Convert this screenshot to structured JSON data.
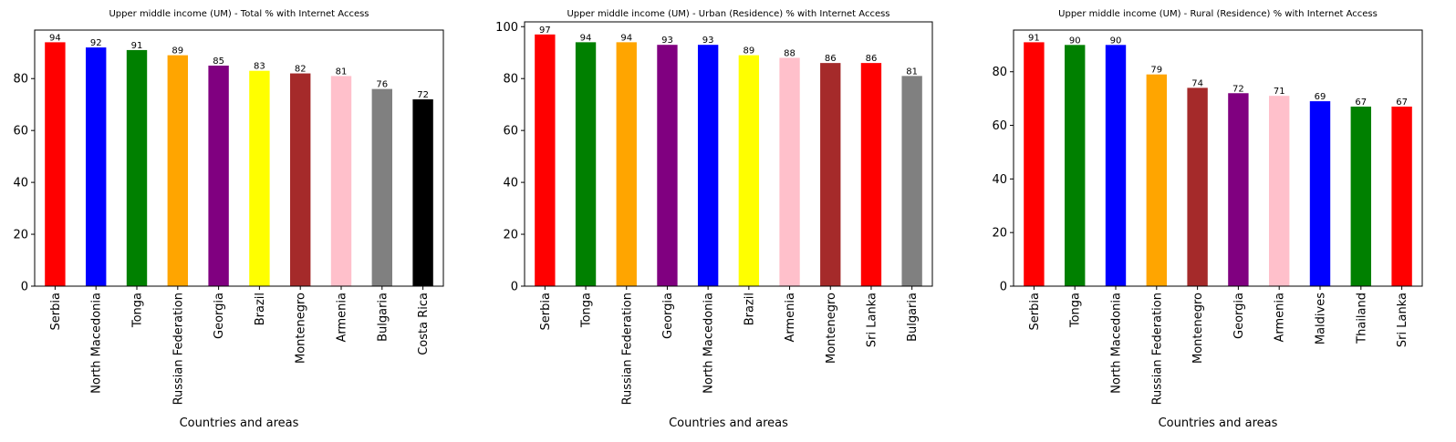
{
  "chart_data": [
    {
      "type": "bar",
      "title": "Upper middle income (UM) - Total % with Internet Access",
      "xlabel": "Countries and areas",
      "ylabel": "",
      "ylim": [
        0,
        98.7
      ],
      "yticks": [
        0,
        20,
        40,
        60,
        80
      ],
      "grid": false,
      "categories": [
        "Serbia",
        "North Macedonia",
        "Tonga",
        "Russian Federation",
        "Georgia",
        "Brazil",
        "Montenegro",
        "Armenia",
        "Bulgaria",
        "Costa Rica"
      ],
      "values": [
        94,
        92,
        91,
        89,
        85,
        83,
        82,
        81,
        76,
        72
      ],
      "colors": [
        "#ff0000",
        "#0000ff",
        "#008000",
        "#ffa500",
        "#800080",
        "#ffff00",
        "#a52a2a",
        "#ffc0cb",
        "#808080",
        "#000000"
      ]
    },
    {
      "type": "bar",
      "title": "Upper middle income (UM) - Urban (Residence) % with Internet Access",
      "xlabel": "Countries and areas",
      "ylabel": "",
      "ylim": [
        0,
        101.85
      ],
      "yticks": [
        0,
        20,
        40,
        60,
        80,
        100
      ],
      "grid": false,
      "categories": [
        "Serbia",
        "Tonga",
        "Russian Federation",
        "Georgia",
        "North Macedonia",
        "Brazil",
        "Armenia",
        "Montenegro",
        "Sri Lanka",
        "Bulgaria"
      ],
      "values": [
        97,
        94,
        94,
        93,
        93,
        89,
        88,
        86,
        86,
        81
      ],
      "colors": [
        "#ff0000",
        "#008000",
        "#ffa500",
        "#800080",
        "#0000ff",
        "#ffff00",
        "#ffc0cb",
        "#a52a2a",
        "#ff0000",
        "#808080"
      ]
    },
    {
      "type": "bar",
      "title": "Upper middle income (UM) - Rural (Residence) % with Internet Access",
      "xlabel": "Countries and areas",
      "ylabel": "",
      "ylim": [
        0,
        95.55
      ],
      "yticks": [
        0,
        20,
        40,
        60,
        80
      ],
      "grid": false,
      "categories": [
        "Serbia",
        "Tonga",
        "North Macedonia",
        "Russian Federation",
        "Montenegro",
        "Georgia",
        "Armenia",
        "Maldives",
        "Thailand",
        "Sri Lanka"
      ],
      "values": [
        91,
        90,
        90,
        79,
        74,
        72,
        71,
        69,
        67,
        67
      ],
      "colors": [
        "#ff0000",
        "#008000",
        "#0000ff",
        "#ffa500",
        "#a52a2a",
        "#800080",
        "#ffc0cb",
        "#0000ff",
        "#008000",
        "#ff0000"
      ]
    }
  ]
}
